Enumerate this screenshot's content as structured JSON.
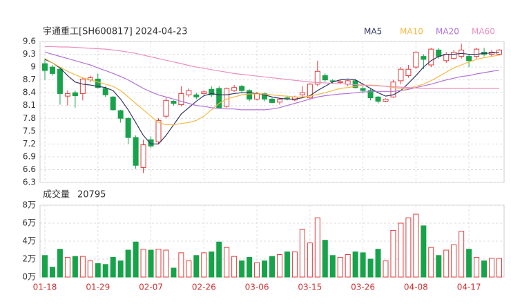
{
  "chart_data": [
    {
      "type": "candlestick",
      "title": "宇通重工[SH600817] 2024-04-23",
      "categories": [
        "01-18",
        null,
        null,
        null,
        null,
        null,
        null,
        "01-29",
        null,
        null,
        null,
        null,
        null,
        null,
        "02-07",
        null,
        null,
        null,
        null,
        null,
        null,
        "02-26",
        null,
        null,
        null,
        null,
        null,
        null,
        "03-06",
        null,
        null,
        null,
        null,
        null,
        null,
        "03-15",
        null,
        null,
        null,
        null,
        null,
        null,
        "03-26",
        null,
        null,
        null,
        null,
        null,
        null,
        "04-08",
        null,
        null,
        null,
        null,
        null,
        null,
        "04-17",
        null,
        null,
        null,
        null
      ],
      "open": [
        9.08,
        9.0,
        8.95,
        8.32,
        8.4,
        8.38,
        8.7,
        8.72,
        8.5,
        8.3,
        7.98,
        7.8,
        7.35,
        6.65,
        7.3,
        7.25,
        7.85,
        8.2,
        8.12,
        8.35,
        8.35,
        8.38,
        8.48,
        8.5,
        8.08,
        8.45,
        8.55,
        8.45,
        8.25,
        8.38,
        8.25,
        8.18,
        8.28,
        8.23,
        8.35,
        8.28,
        8.6,
        8.8,
        8.68,
        8.64,
        8.6,
        8.68,
        8.5,
        8.45,
        8.3,
        8.2,
        8.3,
        8.68,
        8.8,
        9.0,
        9.25,
        9.05,
        9.4,
        9.15,
        9.2,
        9.25,
        9.25,
        9.25,
        9.35,
        9.3,
        9.3
      ],
      "high": [
        9.2,
        9.05,
        9.0,
        8.45,
        8.45,
        8.75,
        8.8,
        8.85,
        8.55,
        8.32,
        8.0,
        7.82,
        7.4,
        7.3,
        7.38,
        7.8,
        8.3,
        8.22,
        8.55,
        8.5,
        8.4,
        8.46,
        8.55,
        8.55,
        8.52,
        8.58,
        8.58,
        8.48,
        8.42,
        8.4,
        8.28,
        8.27,
        8.32,
        8.33,
        8.55,
        8.62,
        9.15,
        8.85,
        8.72,
        8.7,
        8.7,
        8.72,
        8.55,
        8.5,
        8.32,
        8.27,
        8.7,
        9.0,
        9.05,
        9.37,
        9.3,
        9.45,
        9.45,
        9.35,
        9.4,
        9.55,
        9.3,
        9.45,
        9.45,
        9.4,
        9.42
      ],
      "low": [
        8.7,
        8.8,
        8.12,
        8.1,
        8.05,
        8.22,
        8.65,
        8.5,
        8.3,
        7.98,
        7.7,
        7.2,
        6.62,
        6.52,
        7.1,
        7.2,
        7.8,
        8.1,
        8.08,
        8.3,
        8.25,
        8.35,
        8.3,
        8.03,
        8.05,
        8.42,
        8.4,
        8.2,
        8.22,
        8.2,
        8.15,
        8.12,
        8.22,
        8.2,
        8.3,
        8.25,
        8.55,
        8.65,
        8.6,
        8.6,
        8.55,
        8.5,
        8.38,
        8.22,
        8.15,
        8.18,
        8.28,
        8.6,
        8.75,
        8.95,
        8.95,
        9.0,
        9.2,
        9.1,
        9.18,
        9.2,
        9.0,
        9.2,
        9.25,
        9.25,
        9.27
      ],
      "close": [
        8.92,
        8.85,
        8.38,
        8.38,
        8.33,
        8.72,
        8.75,
        8.52,
        8.35,
        8.0,
        7.8,
        7.35,
        6.7,
        7.18,
        7.15,
        7.75,
        8.22,
        8.15,
        8.38,
        8.45,
        8.3,
        8.42,
        8.35,
        8.05,
        8.5,
        8.52,
        8.45,
        8.25,
        8.38,
        8.25,
        8.17,
        8.24,
        8.25,
        8.3,
        8.4,
        8.6,
        8.9,
        8.7,
        8.66,
        8.66,
        8.68,
        8.52,
        8.45,
        8.28,
        8.2,
        8.25,
        8.65,
        8.95,
        8.95,
        9.35,
        9.18,
        9.42,
        9.25,
        9.3,
        9.35,
        9.4,
        9.15,
        9.42,
        9.3,
        9.35,
        9.4
      ],
      "up_color": "#e03a3a",
      "down_color": "#17a34a",
      "series": [
        {
          "name": "MA5",
          "color": "#333366",
          "values": [
            9.18,
            9.1,
            8.98,
            8.8,
            8.65,
            8.6,
            8.58,
            8.55,
            8.52,
            8.45,
            8.25,
            8.0,
            7.7,
            7.4,
            7.2,
            7.2,
            7.4,
            7.65,
            7.9,
            8.05,
            8.2,
            8.33,
            8.38,
            8.35,
            8.35,
            8.38,
            8.4,
            8.4,
            8.38,
            8.35,
            8.3,
            8.27,
            8.25,
            8.25,
            8.28,
            8.33,
            8.45,
            8.55,
            8.65,
            8.7,
            8.72,
            8.7,
            8.6,
            8.5,
            8.4,
            8.32,
            8.35,
            8.45,
            8.62,
            8.8,
            9.0,
            9.15,
            9.25,
            9.3,
            9.3,
            9.32,
            9.3,
            9.3,
            9.32,
            9.33,
            9.35
          ]
        },
        {
          "name": "MA10",
          "color": "#f5b942",
          "values": [
            9.2,
            9.1,
            9.0,
            8.9,
            8.82,
            8.75,
            8.7,
            8.65,
            8.6,
            8.55,
            8.45,
            8.3,
            8.15,
            8.0,
            7.85,
            7.7,
            7.65,
            7.65,
            7.68,
            7.7,
            7.75,
            7.85,
            8.0,
            8.15,
            8.25,
            8.3,
            8.35,
            8.37,
            8.37,
            8.37,
            8.35,
            8.33,
            8.32,
            8.3,
            8.3,
            8.32,
            8.36,
            8.4,
            8.45,
            8.5,
            8.52,
            8.55,
            8.57,
            8.58,
            8.57,
            8.55,
            8.52,
            8.5,
            8.5,
            8.55,
            8.6,
            8.68,
            8.78,
            8.88,
            8.98,
            9.05,
            9.12,
            9.18,
            9.22,
            9.25,
            9.28
          ]
        },
        {
          "name": "MA20",
          "color": "#b072d8",
          "values": [
            9.35,
            9.3,
            9.25,
            9.2,
            9.15,
            9.1,
            9.05,
            8.98,
            8.92,
            8.85,
            8.78,
            8.7,
            8.6,
            8.5,
            8.42,
            8.35,
            8.3,
            8.25,
            8.2,
            8.15,
            8.1,
            8.08,
            8.05,
            8.03,
            8.02,
            8.02,
            8.0,
            8.0,
            8.0,
            8.0,
            8.02,
            8.05,
            8.1,
            8.15,
            8.2,
            8.25,
            8.3,
            8.33,
            8.35,
            8.37,
            8.38,
            8.4,
            8.42,
            8.42,
            8.43,
            8.43,
            8.43,
            8.45,
            8.48,
            8.52,
            8.56,
            8.6,
            8.65,
            8.7,
            8.74,
            8.78,
            8.8,
            8.84,
            8.87,
            8.9,
            8.93
          ]
        },
        {
          "name": "MA60",
          "color": "#ec8fc0",
          "values": [
            9.48,
            9.48,
            9.47,
            9.47,
            9.46,
            9.45,
            9.44,
            9.43,
            9.42,
            9.4,
            9.38,
            9.35,
            9.32,
            9.28,
            9.24,
            9.2,
            9.16,
            9.12,
            9.08,
            9.04,
            9.0,
            8.97,
            8.94,
            8.91,
            8.88,
            8.85,
            8.83,
            8.81,
            8.79,
            8.77,
            8.75,
            8.73,
            8.71,
            8.69,
            8.67,
            8.65,
            8.64,
            8.63,
            8.62,
            8.61,
            8.6,
            8.59,
            8.58,
            8.57,
            8.56,
            8.55,
            8.54,
            8.53,
            8.52,
            8.51,
            8.5,
            8.5,
            8.5,
            8.5,
            8.5,
            8.5,
            8.5,
            8.5,
            8.5,
            8.5,
            8.5
          ]
        }
      ],
      "ylim": [
        6.3,
        9.6
      ],
      "yticks": [
        9.6,
        9.3,
        9,
        8.7,
        8.4,
        8.1,
        7.8,
        7.5,
        7.2,
        6.9,
        6.6,
        6.3
      ],
      "grid": true
    },
    {
      "type": "bar",
      "title": "成交量",
      "values": [
        24000,
        11000,
        31000,
        22000,
        23000,
        23000,
        18000,
        15000,
        14000,
        22000,
        18000,
        30000,
        39000,
        31000,
        30000,
        31000,
        30000,
        10000,
        27000,
        18000,
        24000,
        27000,
        28000,
        39000,
        33000,
        23000,
        18000,
        22000,
        16000,
        18000,
        23000,
        25000,
        28000,
        28000,
        53000,
        38000,
        66000,
        41000,
        24000,
        22000,
        25000,
        28000,
        27000,
        20000,
        31000,
        18000,
        52000,
        60000,
        66000,
        70000,
        57000,
        33000,
        24000,
        30000,
        36000,
        51000,
        31000,
        22000,
        18000,
        21000,
        20795
      ],
      "ylim": [
        0,
        80000
      ],
      "yticks": [
        {
          "value": 80000,
          "label": "8万"
        },
        {
          "value": 60000,
          "label": "6万"
        },
        {
          "value": 40000,
          "label": "4万"
        },
        {
          "value": 20000,
          "label": "2万"
        },
        {
          "value": 0,
          "label": "0万"
        }
      ],
      "grid": true
    }
  ]
}
